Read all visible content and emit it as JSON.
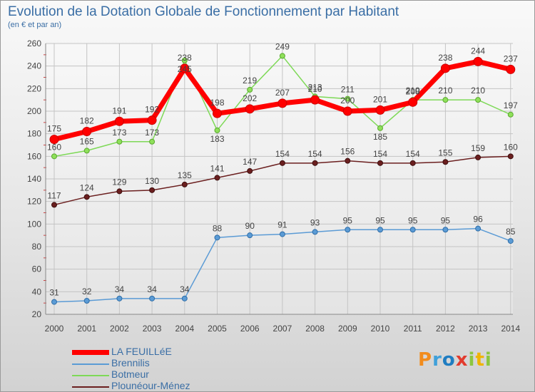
{
  "chart_data": {
    "type": "line",
    "title": "Evolution de la Dotation Globale de Fonctionnement par Habitant",
    "subtitle": "(en € et par an)",
    "xlabel": "",
    "ylabel": "",
    "categories": [
      "2000",
      "2001",
      "2002",
      "2003",
      "2004",
      "2005",
      "2006",
      "2007",
      "2008",
      "2009",
      "2010",
      "2011",
      "2012",
      "2013",
      "2014"
    ],
    "ylim": [
      20,
      260
    ],
    "yticks": [
      20,
      40,
      60,
      80,
      100,
      120,
      140,
      160,
      180,
      200,
      220,
      240,
      260
    ],
    "grid": true,
    "legend_position": "bottom-left",
    "series": [
      {
        "name": "LA FEUILLéE",
        "color": "#ff0000",
        "values": [
          175,
          182,
          191,
          192,
          238,
          198,
          202,
          207,
          210,
          200,
          201,
          208,
          238,
          244,
          237
        ]
      },
      {
        "name": "Brennilis",
        "color": "#5b9bd5",
        "values": [
          31,
          32,
          34,
          34,
          34,
          88,
          90,
          91,
          93,
          95,
          95,
          95,
          95,
          96,
          85
        ]
      },
      {
        "name": "Botmeur",
        "color": "#7ed957",
        "values": [
          160,
          165,
          173,
          173,
          245,
          183,
          219,
          249,
          213,
          211,
          185,
          210,
          210,
          210,
          197
        ]
      },
      {
        "name": "Plounéour-Ménez",
        "color": "#6b1f1f",
        "values": [
          117,
          124,
          129,
          130,
          135,
          141,
          147,
          154,
          154,
          156,
          154,
          154,
          155,
          159,
          160
        ]
      }
    ]
  },
  "logo": {
    "text": "Proxiti",
    "letters": [
      "P",
      "r",
      "o",
      "x",
      "i",
      "t",
      "i"
    ]
  }
}
